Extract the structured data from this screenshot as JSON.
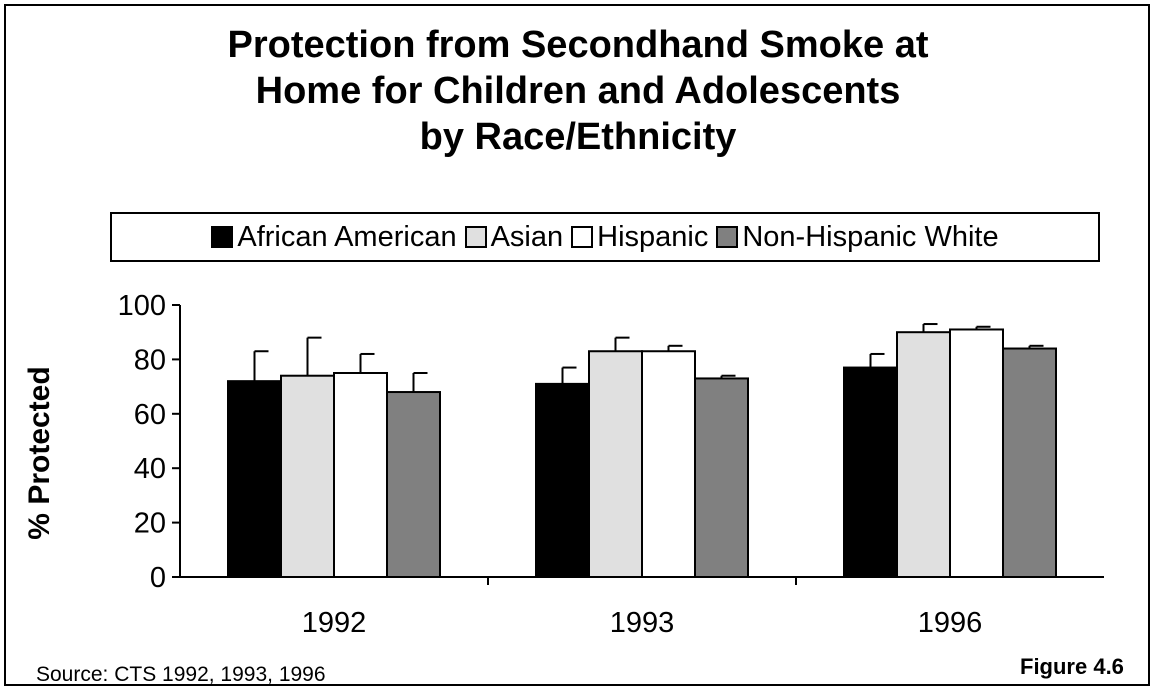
{
  "figure_label": "Figure 4.6",
  "source": "Source:  CTS 1992, 1993, 1996",
  "chart_data": {
    "type": "bar",
    "title_lines": [
      "Protection from Secondhand Smoke at",
      "Home for Children and Adolescents",
      "by Race/Ethnicity"
    ],
    "ylabel": "% Protected",
    "xlabel": "",
    "ylim": [
      0,
      100
    ],
    "yticks": [
      0,
      20,
      40,
      60,
      80,
      100
    ],
    "categories": [
      "1992",
      "1993",
      "1996"
    ],
    "legend_position": "top",
    "grid": false,
    "series": [
      {
        "name": "African American",
        "color": "#000000",
        "values": [
          72,
          71,
          77
        ],
        "error_upper": [
          83,
          77,
          82
        ]
      },
      {
        "name": "Asian",
        "color": "#e0e0e0",
        "values": [
          74,
          83,
          90
        ],
        "error_upper": [
          88,
          88,
          93
        ]
      },
      {
        "name": "Hispanic",
        "color": "#ffffff",
        "values": [
          75,
          83,
          91
        ],
        "error_upper": [
          82,
          85,
          92
        ]
      },
      {
        "name": "Non-Hispanic White",
        "color": "#808080",
        "values": [
          68,
          73,
          84
        ],
        "error_upper": [
          75,
          74,
          85
        ]
      }
    ]
  }
}
